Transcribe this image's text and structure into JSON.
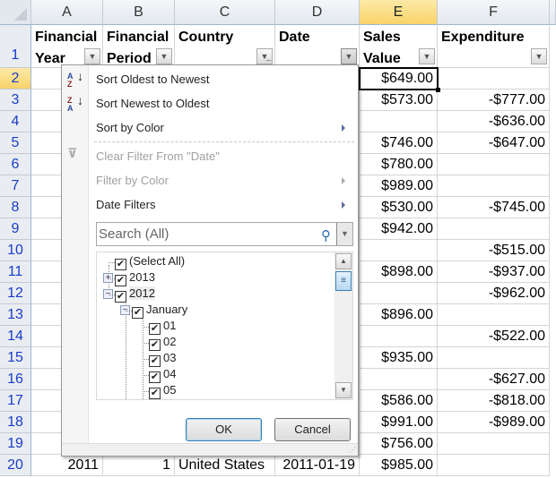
{
  "columns": [
    "A",
    "B",
    "C",
    "D",
    "E",
    "F"
  ],
  "selected_column": "E",
  "header_row": {
    "row": "1",
    "cells": [
      {
        "line1": "Financial",
        "line2": "Year"
      },
      {
        "line1": "Financial",
        "line2": "Period"
      },
      {
        "line1": "",
        "line2": "Country",
        "filtered": true
      },
      {
        "line1": "",
        "line2": "Date"
      },
      {
        "line1": "Sales",
        "line2": "Value"
      },
      {
        "line1": "",
        "line2": "Expenditure"
      }
    ]
  },
  "rows": [
    {
      "n": "2",
      "e": "$649.00",
      "f": ""
    },
    {
      "n": "3",
      "e": "$573.00",
      "f": "-$777.00"
    },
    {
      "n": "4",
      "e": "",
      "f": "-$636.00"
    },
    {
      "n": "5",
      "e": "$746.00",
      "f": "-$647.00"
    },
    {
      "n": "6",
      "e": "$780.00",
      "f": ""
    },
    {
      "n": "7",
      "e": "$989.00",
      "f": ""
    },
    {
      "n": "8",
      "e": "$530.00",
      "f": "-$745.00"
    },
    {
      "n": "9",
      "e": "$942.00",
      "f": ""
    },
    {
      "n": "10",
      "e": "",
      "f": "-$515.00"
    },
    {
      "n": "11",
      "e": "$898.00",
      "f": "-$937.00"
    },
    {
      "n": "12",
      "e": "",
      "f": "-$962.00"
    },
    {
      "n": "13",
      "e": "$896.00",
      "f": ""
    },
    {
      "n": "14",
      "e": "",
      "f": "-$522.00"
    },
    {
      "n": "15",
      "e": "$935.00",
      "f": ""
    },
    {
      "n": "16",
      "e": "",
      "f": "-$627.00"
    },
    {
      "n": "17",
      "e": "$586.00",
      "f": "-$818.00"
    },
    {
      "n": "18",
      "e": "$991.00",
      "f": "-$989.00"
    },
    {
      "n": "19",
      "e": "$756.00",
      "f": ""
    },
    {
      "n": "20",
      "a": "2011",
      "b": "1",
      "c": "United States",
      "d": "2011-01-19",
      "e": "$985.00",
      "f": ""
    }
  ],
  "selected_cell": "E2",
  "filter_menu": {
    "items": [
      {
        "label": "Sort Oldest to Newest",
        "icon": "sort-asc-icon",
        "enabled": true
      },
      {
        "label": "Sort Newest to Oldest",
        "icon": "sort-desc-icon",
        "enabled": true
      },
      {
        "label": "Sort by Color",
        "enabled": true,
        "submenu": true
      },
      {
        "label": "Clear Filter From \"Date\"",
        "icon": "clear-filter-icon",
        "enabled": false
      },
      {
        "label": "Filter by Color",
        "enabled": false,
        "submenu": true
      },
      {
        "label": "Date Filters",
        "enabled": true,
        "submenu": true
      }
    ],
    "search_placeholder": "Search (All)",
    "tree": [
      {
        "label": "(Select All)",
        "checked": true
      },
      {
        "label": "2013",
        "checked": true,
        "expander": "+"
      },
      {
        "label": "2012",
        "checked": true,
        "expander": "−"
      },
      {
        "label": "January",
        "checked": true,
        "expander": "−"
      },
      {
        "label": "01",
        "checked": true
      },
      {
        "label": "02",
        "checked": true
      },
      {
        "label": "03",
        "checked": true
      },
      {
        "label": "04",
        "checked": true
      },
      {
        "label": "05",
        "checked": true
      }
    ],
    "ok_label": "OK",
    "cancel_label": "Cancel"
  }
}
